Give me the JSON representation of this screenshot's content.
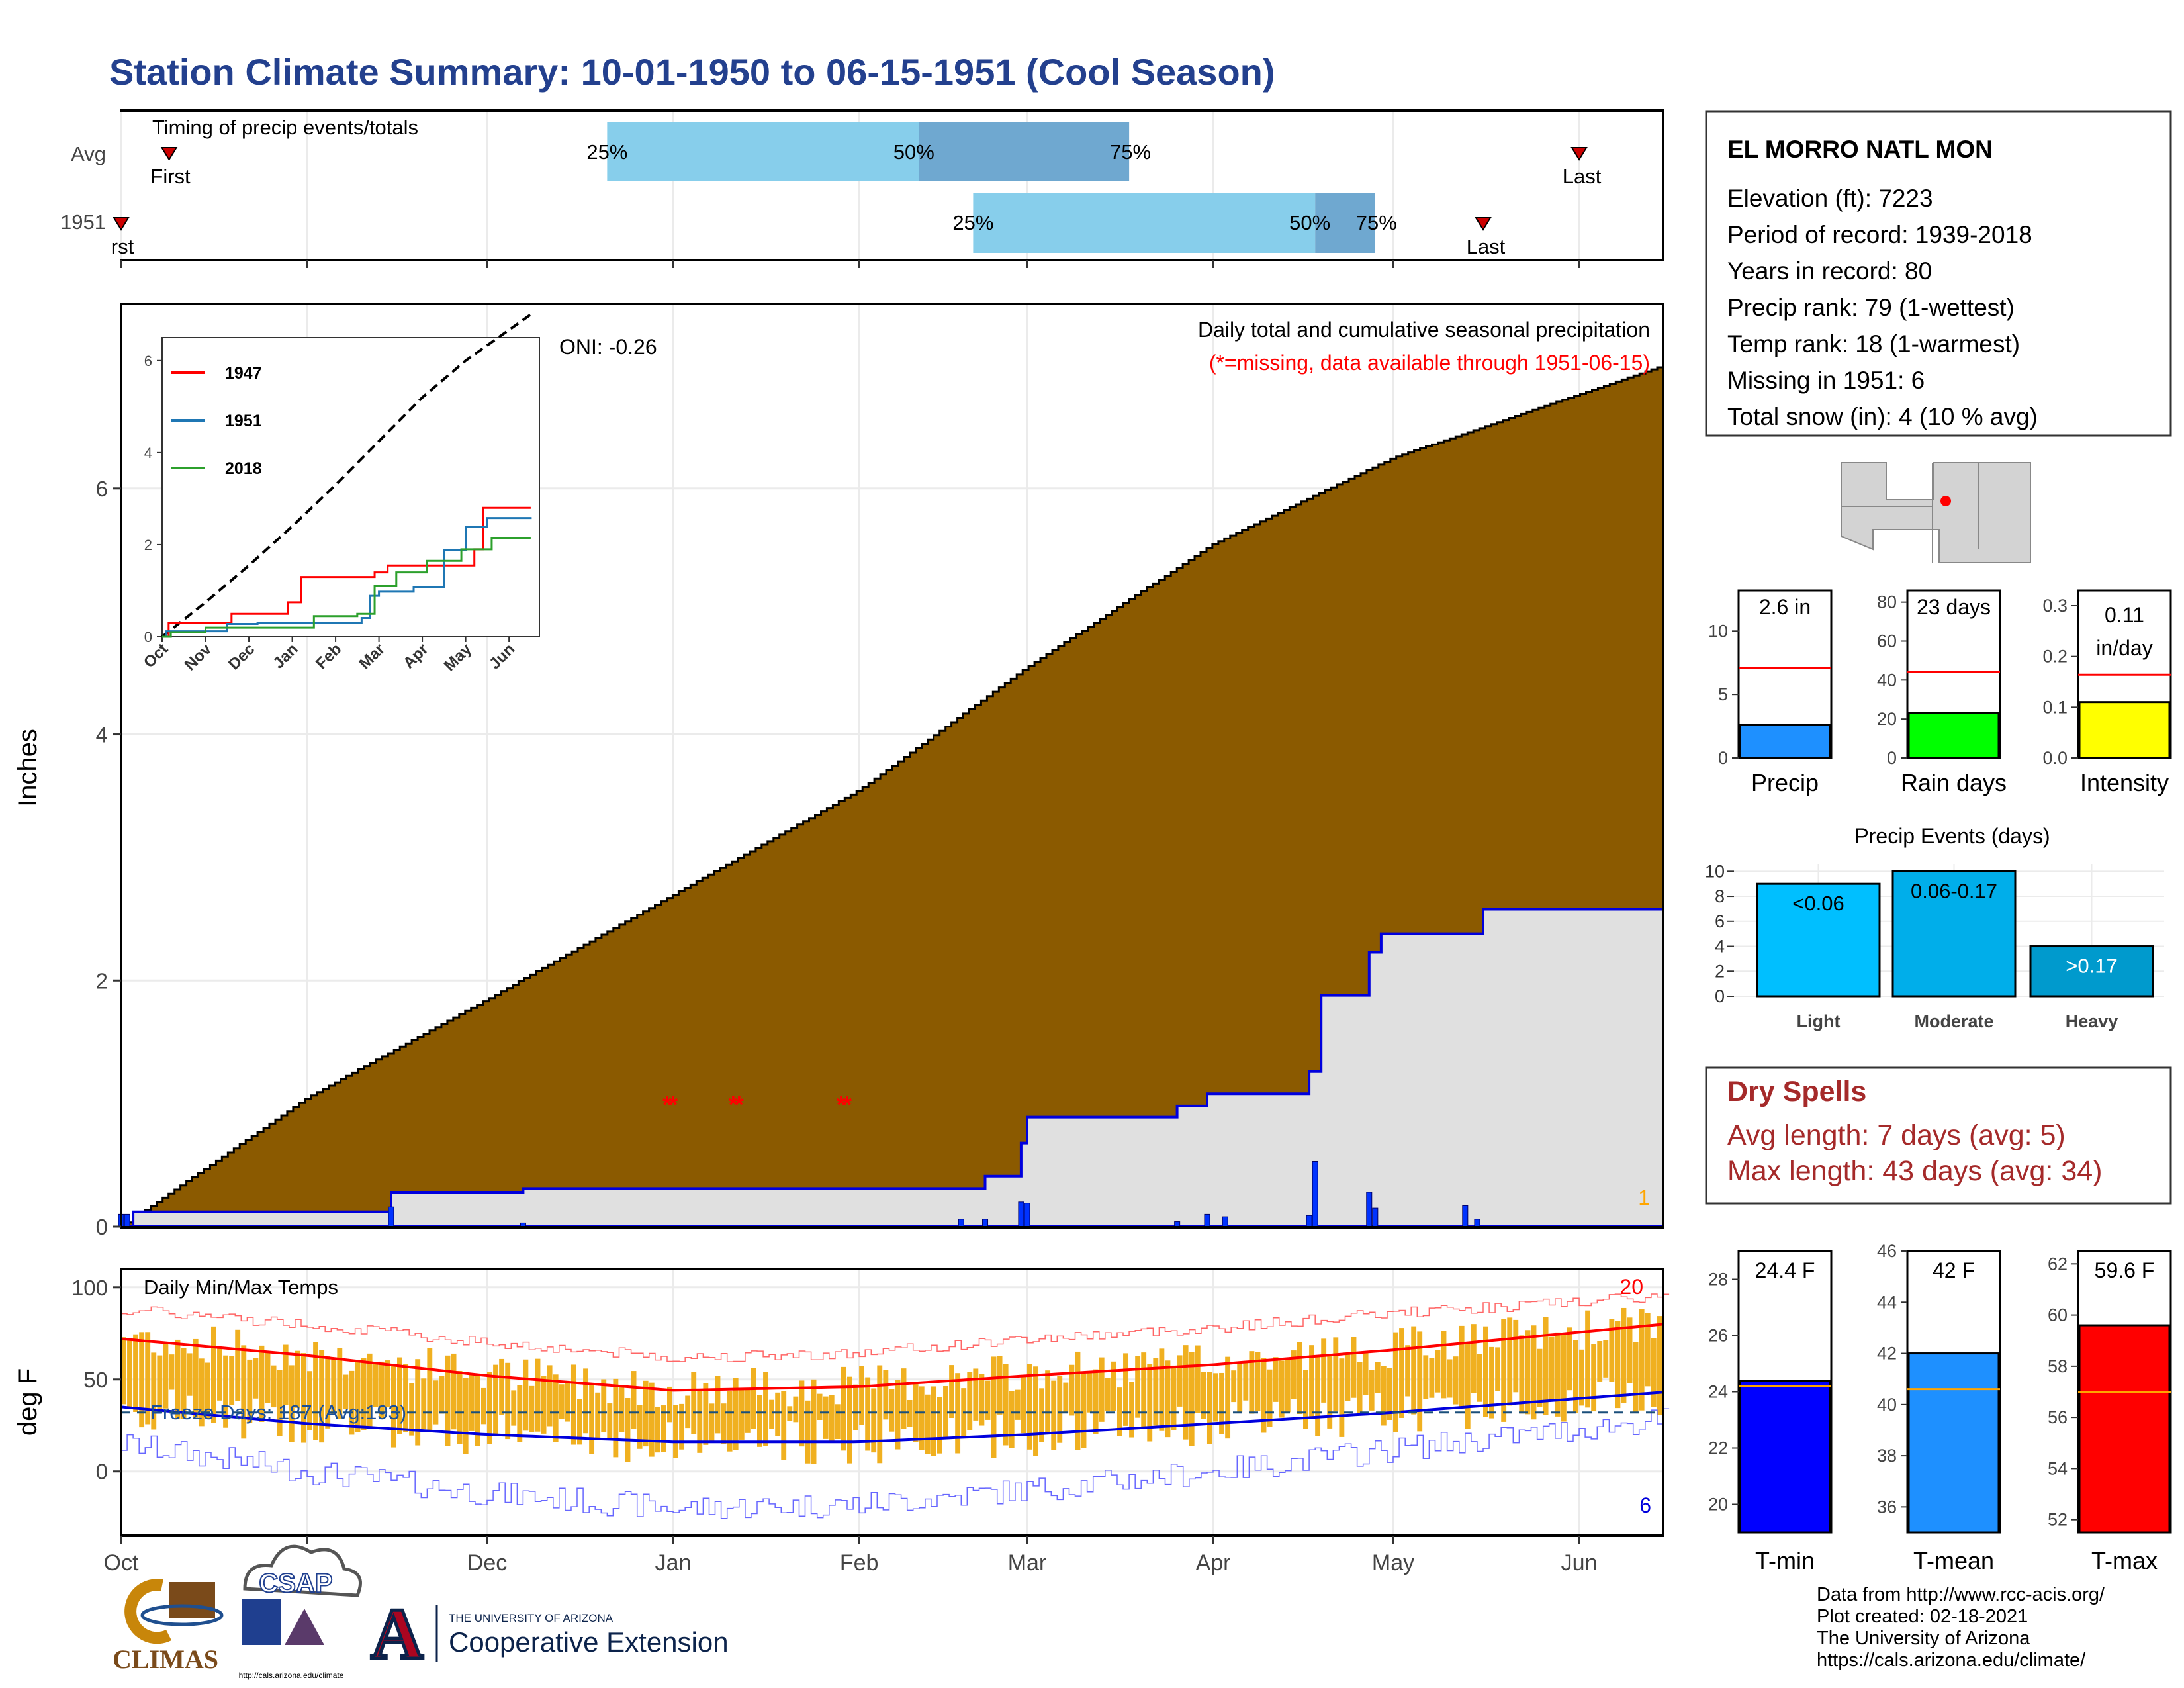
{
  "title": "Station Climate Summary: 10-01-1950 to 06-15-1951 (Cool Season)",
  "colors": {
    "title": "#23408e",
    "cum_fill": "#8b5a00",
    "avg_fill": "#e0e0e0",
    "precip_line": "#0000dd",
    "bar_light": "#87ceeb",
    "bar_dark": "#6fa8d0",
    "temp_bar": "#f0b020",
    "max_line": "#ff0000",
    "min_line": "#0000dd",
    "dry_title": "#a52a2a"
  },
  "timing": {
    "title": "Timing of precip events/totals",
    "rows": [
      "Avg",
      "1951"
    ],
    "avg": {
      "first": "First",
      "last": "Last",
      "p25": "25%",
      "p50": "50%",
      "p75": "75%",
      "first_date": "1950-10-09",
      "last_date": "1951-06-01",
      "p25_date": "1950-12-21",
      "p50_date": "1951-02-11",
      "p75_date": "1951-03-18"
    },
    "obs": {
      "first": "rst",
      "last": "Last",
      "p25": "25%",
      "p50": "50%",
      "p75": "75%",
      "first_date": "1950-10-01",
      "last_date": "1951-05-16",
      "p25_date": "1951-02-20",
      "p50_date": "1951-04-18",
      "p75_date": "1951-04-28"
    }
  },
  "main_chart": {
    "title": "Daily total and cumulative seasonal precipitation",
    "subtitle": "(*=missing, data available through 1951-06-15)",
    "oni": "ONI: -0.26",
    "ylabel": "Inches",
    "yticks": [
      "0",
      "2",
      "4",
      "6"
    ],
    "corner_count": "1",
    "xticks": [
      "Oct",
      "Nov",
      "Dec",
      "Jan",
      "Feb",
      "Mar",
      "Apr",
      "May",
      "Jun"
    ]
  },
  "inset": {
    "legend": [
      "1947",
      "1951",
      "2018"
    ],
    "yticks": [
      "0",
      "2",
      "4",
      "6"
    ],
    "xticks": [
      "Oct",
      "Nov",
      "Dec",
      "Jan",
      "Feb",
      "Mar",
      "Apr",
      "May",
      "Jun"
    ]
  },
  "temp_chart": {
    "title": "Daily Min/Max Temps",
    "ylabel": "deg F",
    "yticks": [
      "0",
      "50",
      "100"
    ],
    "freeze": "Freeze Days: 187 (Avg:193)",
    "max_count": "20",
    "min_count": "6"
  },
  "station": {
    "name": "EL MORRO NATL MON",
    "lines": [
      "Elevation (ft): 7223",
      "Period of record: 1939-2018",
      "Years in record: 80",
      "Precip rank: 79 (1-wettest)",
      "Temp rank: 18 (1-warmest)",
      "Missing in 1951: 6",
      "Total snow (in): 4 (10 % avg)"
    ]
  },
  "gauges": [
    {
      "label": "Precip",
      "value_text": "2.6 in",
      "value": 2.6,
      "avg": 7.1,
      "max": 13.2,
      "ticks": [
        "0",
        "5",
        "10"
      ],
      "tickvals": [
        0,
        5,
        10
      ],
      "color": "#1e90ff"
    },
    {
      "label": "Rain days",
      "value_text": "23 days",
      "value": 23,
      "avg": 44,
      "max": 86,
      "ticks": [
        "0",
        "20",
        "40",
        "60",
        "80"
      ],
      "tickvals": [
        0,
        20,
        40,
        60,
        80
      ],
      "color": "#00ff00"
    },
    {
      "label": "Intensity",
      "value_text": "0.11 in/day",
      "value": 0.11,
      "avg": 0.164,
      "max": 0.33,
      "ticks": [
        "0.0",
        "0.1",
        "0.2",
        "0.3"
      ],
      "tickvals": [
        0,
        0.1,
        0.2,
        0.3
      ],
      "color": "#ffff00"
    }
  ],
  "events": {
    "title": "Precip Events (days)",
    "bars": [
      {
        "label": "Light",
        "range": "<0.06",
        "value": 9,
        "color": "#00bfff"
      },
      {
        "label": "Moderate",
        "range": "0.06-0.17",
        "value": 10,
        "color": "#00aeea"
      },
      {
        "label": "Heavy",
        "range": ">0.17",
        "value": 4,
        "color": "#009acd"
      }
    ],
    "yticks": [
      "0",
      "2",
      "4",
      "6",
      "8",
      "10"
    ]
  },
  "dry_spells": {
    "title": "Dry Spells",
    "avg": "Avg length: 7 days (avg: 5)",
    "max": "Max length: 43 days (avg: 34)"
  },
  "temp_gauges": [
    {
      "label": "T-min",
      "value_text": "24.4 F",
      "value": 24.4,
      "avg": 24.2,
      "min": 19,
      "max": 29,
      "ticks": [
        "20",
        "22",
        "24",
        "26",
        "28"
      ],
      "tickvals": [
        20,
        22,
        24,
        26,
        28
      ],
      "color": "#0000ff"
    },
    {
      "label": "T-mean",
      "value_text": "42 F",
      "value": 42.0,
      "avg": 40.6,
      "min": 35,
      "max": 46,
      "ticks": [
        "36",
        "38",
        "40",
        "42",
        "44",
        "46"
      ],
      "tickvals": [
        36,
        38,
        40,
        42,
        44,
        46
      ],
      "color": "#1e90ff"
    },
    {
      "label": "T-max",
      "value_text": "59.6 F",
      "value": 59.6,
      "avg": 57.0,
      "min": 51.5,
      "max": 62.5,
      "ticks": [
        "52",
        "54",
        "56",
        "58",
        "60",
        "62"
      ],
      "tickvals": [
        52,
        54,
        56,
        58,
        60,
        62
      ],
      "color": "#ff0000"
    }
  ],
  "footer": {
    "credits": [
      "Data from http://www.rcc-acis.org/",
      "Plot created: 02-18-2021",
      "The University of Arizona",
      "https://cals.arizona.edu/climate/"
    ],
    "climas": "CLIMAS",
    "csap": "CSAP",
    "csap_url": "http://cals.arizona.edu/climate",
    "ua_line1": "THE UNIVERSITY OF ARIZONA",
    "ua_line2": "Cooperative Extension",
    "ua_mark": "A"
  },
  "chart_data": {
    "type": "area",
    "title": "Daily total and cumulative seasonal precipitation",
    "ylabel": "Inches",
    "ylim": [
      0,
      7.5
    ],
    "xlim": [
      "1950-10-01",
      "1951-06-15"
    ],
    "series": [
      {
        "name": "",
        "x": [
          "1950-10-01",
          "1950-11-01",
          "1950-12-01",
          "1951-01-01",
          "1951-02-01",
          "1951-03-01",
          "1951-04-01",
          "1951-05-01",
          "1951-06-15"
        ],
        "values": [
          0.0,
          1.05,
          1.85,
          2.7,
          3.55,
          4.55,
          5.55,
          6.25,
          7.0
        ]
      },
      {
        "name": "1951",
        "x": [
          "1950-10-01",
          "1950-10-03",
          "1950-11-15",
          "1950-12-07",
          "1951-02-18",
          "1951-02-22",
          "1951-02-28",
          "1951-03-01",
          "1951-03-26",
          "1951-03-31",
          "1951-04-17",
          "1951-04-19",
          "1951-04-27",
          "1951-04-29",
          "1951-05-16",
          "1951-06-15"
        ],
        "values": [
          0.0,
          0.12,
          0.28,
          0.31,
          0.31,
          0.41,
          0.68,
          0.89,
          0.98,
          1.08,
          1.26,
          1.88,
          2.23,
          2.38,
          2.58,
          2.6
        ]
      }
    ],
    "daily_precip": {
      "x": [
        "1950-10-01",
        "1950-10-02",
        "1950-11-15",
        "1950-12-07",
        "1951-02-18",
        "1951-02-22",
        "1951-02-28",
        "1951-03-01",
        "1951-03-26",
        "1951-03-31",
        "1951-04-03",
        "1951-04-17",
        "1951-04-18",
        "1951-04-27",
        "1951-04-28",
        "1951-05-13",
        "1951-05-15"
      ],
      "values": [
        0.1,
        0.1,
        0.16,
        0.03,
        0.06,
        0.06,
        0.2,
        0.19,
        0.04,
        0.1,
        0.08,
        0.09,
        0.53,
        0.28,
        0.15,
        0.17,
        0.06
      ]
    },
    "missing_dates": [
      "1950-12-31",
      "1951-01-01",
      "1951-01-11",
      "1951-01-12",
      "1951-01-29",
      "1951-01-30"
    ],
    "inset": {
      "type": "line",
      "x_months": [
        "Oct",
        "Nov",
        "Dec",
        "Jan",
        "Feb",
        "Mar",
        "Apr",
        "May",
        "Jun"
      ],
      "ylim": [
        0,
        6.5
      ],
      "series": [
        {
          "name": "",
          "x": [
            0,
            1,
            2,
            3,
            4,
            5,
            6,
            7,
            8.5
          ],
          "values": [
            0,
            0.75,
            1.55,
            2.4,
            3.3,
            4.25,
            5.2,
            6.0,
            7.0
          ]
        },
        {
          "name": "1947",
          "x": [
            0,
            0.15,
            1.6,
            2.9,
            3.2,
            4.9,
            5.2,
            7.2,
            7.4,
            8.5
          ],
          "values": [
            0,
            0.3,
            0.5,
            0.75,
            1.3,
            1.4,
            1.55,
            1.9,
            2.8,
            2.8
          ]
        },
        {
          "name": "1951",
          "x": [
            0,
            0.1,
            1.5,
            2.2,
            4.6,
            4.8,
            5.0,
            5.8,
            6.5,
            7.0,
            7.5,
            8.5
          ],
          "values": [
            0,
            0.12,
            0.28,
            0.31,
            0.41,
            0.89,
            0.98,
            1.08,
            1.88,
            2.38,
            2.58,
            2.6
          ]
        },
        {
          "name": "2018",
          "x": [
            0,
            0.2,
            1.0,
            3.5,
            4.5,
            4.9,
            5.4,
            6.1,
            6.9,
            7.6,
            8.5
          ],
          "values": [
            0,
            0.1,
            0.2,
            0.45,
            0.5,
            1.1,
            1.4,
            1.65,
            1.9,
            2.15,
            2.15
          ]
        }
      ]
    },
    "temperature": {
      "type": "bar",
      "ylabel": "deg F",
      "ylim": [
        -35,
        110
      ],
      "avg_max_curve": {
        "x": [
          "1950-10-01",
          "1950-11-01",
          "1950-12-01",
          "1951-01-01",
          "1951-02-01",
          "1951-03-01",
          "1951-04-01",
          "1951-05-01",
          "1951-06-15"
        ],
        "values": [
          72,
          63,
          52,
          44,
          46,
          52,
          58,
          66,
          80
        ]
      },
      "avg_min_curve": {
        "x": [
          "1950-10-01",
          "1950-11-01",
          "1950-12-01",
          "1951-01-01",
          "1951-02-01",
          "1951-03-01",
          "1951-04-01",
          "1951-05-01",
          "1951-06-15"
        ],
        "values": [
          35,
          26,
          20,
          16,
          16,
          20,
          26,
          32,
          43
        ]
      },
      "record_max_curve": {
        "x": [
          "1950-10-01",
          "1950-11-01",
          "1950-12-01",
          "1951-01-01",
          "1951-02-01",
          "1951-03-01",
          "1951-04-01",
          "1951-05-01",
          "1951-06-15"
        ],
        "values": [
          88,
          80,
          70,
          62,
          64,
          72,
          78,
          86,
          95
        ]
      },
      "record_min_curve": {
        "x": [
          "1950-10-01",
          "1950-11-01",
          "1950-12-01",
          "1951-01-01",
          "1951-02-01",
          "1951-03-01",
          "1951-04-01",
          "1951-05-01",
          "1951-06-15"
        ],
        "values": [
          15,
          0,
          -12,
          -20,
          -18,
          -10,
          0,
          12,
          28
        ]
      },
      "freeze_line": 32
    }
  }
}
